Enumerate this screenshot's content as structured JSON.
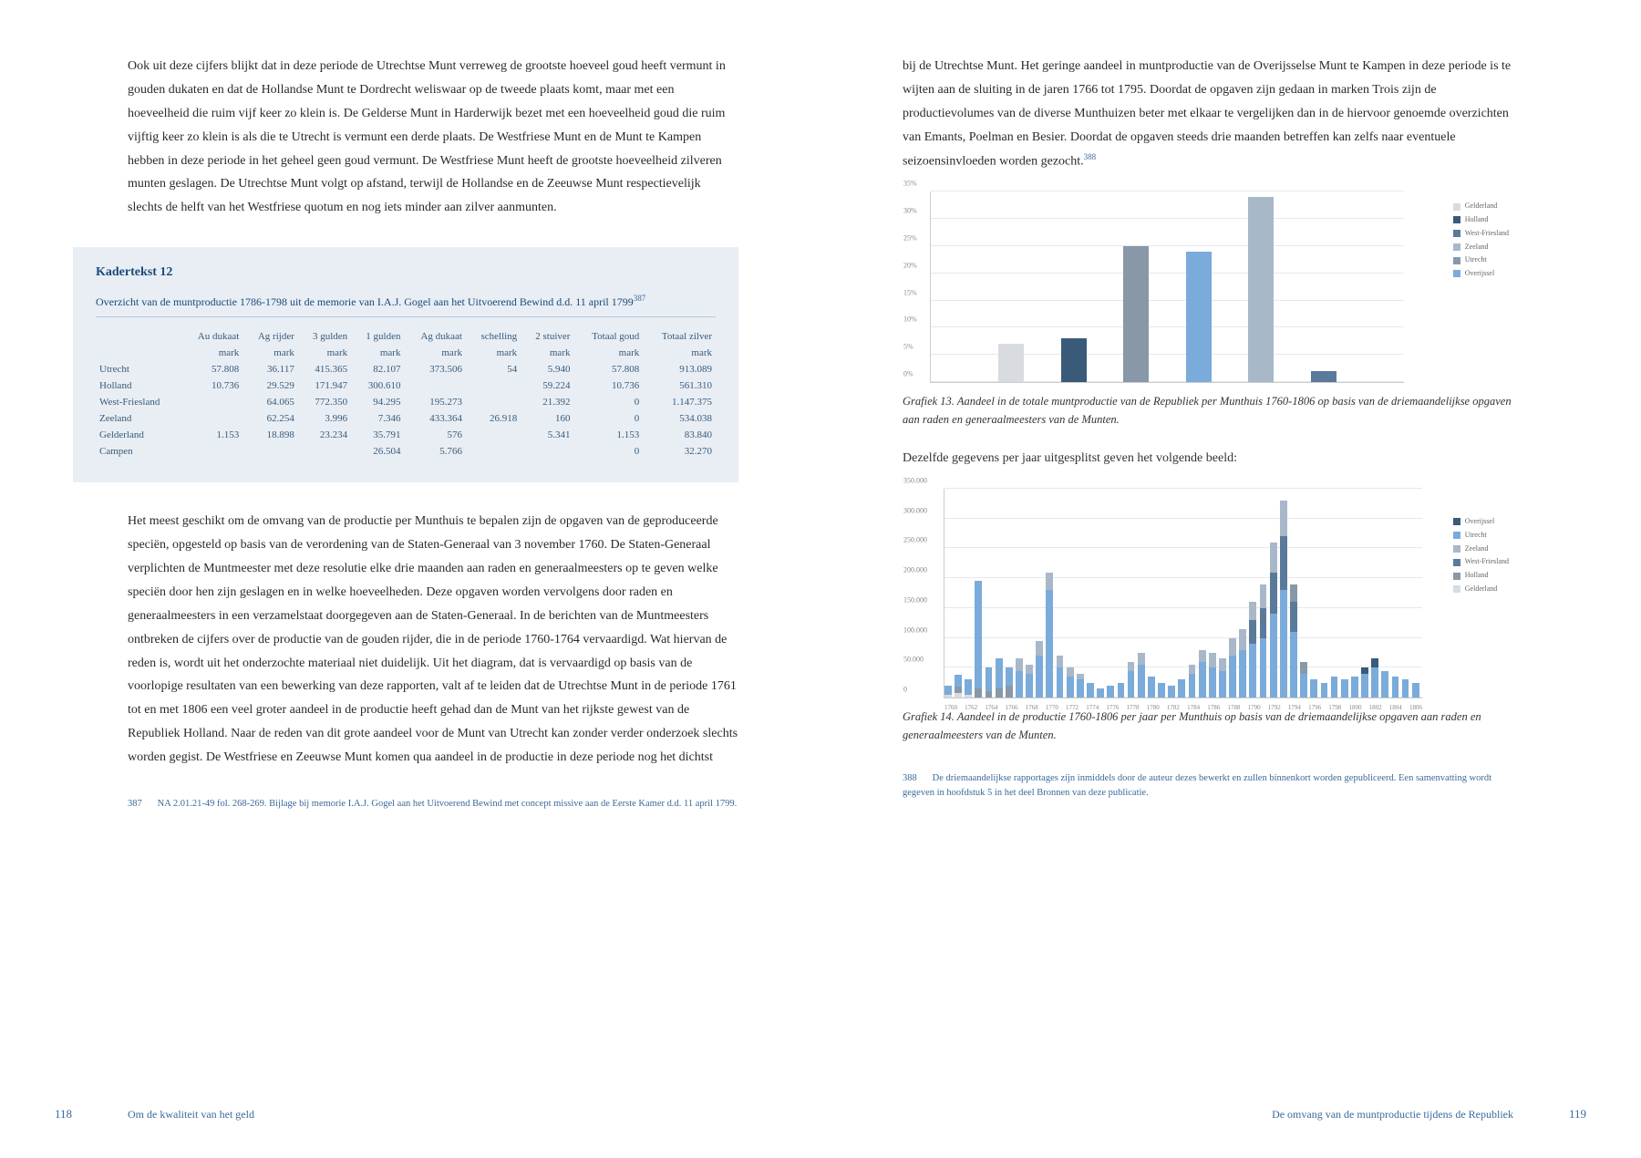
{
  "left": {
    "para1": "Ook uit deze cijfers blijkt dat in deze periode de Utrechtse Munt verreweg de grootste hoeveel goud heeft vermunt in gouden dukaten en dat de Hollandse Munt te Dordrecht weliswaar op de tweede plaats komt, maar met een hoeveelheid die ruim vijf keer zo klein is. De Gelderse Munt in Harderwijk bezet met een hoeveelheid goud die ruim vijftig keer zo klein is als die te Utrecht is vermunt een derde plaats. De Westfriese Munt en de Munt te Kampen hebben in deze periode in het geheel geen goud vermunt. De Westfriese Munt heeft de grootste hoeveelheid zilveren munten geslagen. De Utrechtse Munt volgt op afstand, terwijl de Hollandse en de Zeeuwse Munt respectievelijk slechts de helft van het Westfriese quotum en nog iets minder aan zilver aanmunten.",
    "kader_title": "Kadertekst 12",
    "kader_subtitle": "Overzicht van de muntproductie 1786-1798 uit de memorie van I.A.J. Gogel aan het Uitvoerend Bewind d.d. 11 april 1799",
    "table": {
      "headers_row1": [
        "",
        "Au dukaat",
        "Ag rijder",
        "3 gulden",
        "1 gulden",
        "Ag dukaat",
        "schelling",
        "2 stuiver",
        "Totaal goud",
        "Totaal zilver"
      ],
      "headers_row2": [
        "",
        "mark",
        "mark",
        "mark",
        "mark",
        "mark",
        "mark",
        "mark",
        "mark",
        "mark"
      ],
      "rows": [
        [
          "Utrecht",
          "57.808",
          "36.117",
          "415.365",
          "82.107",
          "373.506",
          "54",
          "5.940",
          "57.808",
          "913.089"
        ],
        [
          "Holland",
          "10.736",
          "29.529",
          "171.947",
          "300.610",
          "",
          "",
          "59.224",
          "10.736",
          "561.310"
        ],
        [
          "West-Friesland",
          "",
          "64.065",
          "772.350",
          "94.295",
          "195.273",
          "",
          "21.392",
          "0",
          "1.147.375"
        ],
        [
          "Zeeland",
          "",
          "62.254",
          "3.996",
          "7.346",
          "433.364",
          "26.918",
          "160",
          "0",
          "534.038"
        ],
        [
          "Gelderland",
          "1.153",
          "18.898",
          "23.234",
          "35.791",
          "576",
          "",
          "5.341",
          "1.153",
          "83.840"
        ],
        [
          "Campen",
          "",
          "",
          "",
          "26.504",
          "5.766",
          "",
          "",
          "0",
          "32.270"
        ]
      ]
    },
    "para2": "Het meest geschikt om de omvang van de productie per Munthuis te bepalen zijn de opgaven van de geproduceerde speciën, opgesteld op basis van de verordening van de Staten-Generaal van 3 november 1760. De Staten-Generaal verplichten de Muntmeester met deze resolutie elke drie maanden aan raden en generaalmeesters op te geven welke speciën door hen zijn geslagen en in welke hoeveelheden. Deze opgaven worden vervolgens door raden en generaalmeesters in een verzamelstaat doorgegeven aan de Staten-Generaal. In de berichten van de Muntmeesters ontbreken de cijfers over de productie van de gouden rijder, die in de periode 1760-1764 vervaardigd. Wat hiervan de reden is, wordt uit het onderzochte materiaal niet duidelijk. Uit het diagram, dat is vervaardigd op basis van de voorlopige resultaten van een bewerking van deze rapporten, valt af te leiden dat de Utrechtse Munt in de periode 1761 tot en met 1806 een veel groter aandeel in de productie heeft gehad dan de Munt van het rijkste gewest van de Republiek Holland. Naar de reden van dit grote aandeel voor de Munt van Utrecht kan zonder verder onderzoek slechts worden gegist. De Westfriese en Zeeuwse Munt komen qua aandeel in de productie in deze periode nog het dichtst",
    "footnote_num": "387",
    "footnote_text": "NA 2.01.21-49 fol. 268-269. Bijlage bij memorie I.A.J. Gogel aan het Uitvoerend Bewind met concept missive aan de Eerste Kamer d.d. 11 april 1799.",
    "page_num": "118",
    "page_footer": "Om de kwaliteit van het geld"
  },
  "right": {
    "para1": "bij de Utrechtse Munt. Het geringe aandeel in muntproductie van de Overijsselse Munt te Kampen in deze periode is te wijten aan de sluiting in de jaren 1766 tot 1795. Doordat de opgaven zijn gedaan in marken Trois zijn de productievolumes van de diverse Munthuizen beter met elkaar te vergelijken dan in de hiervoor genoemde overzichten van Emants, Poelman en Besier. Doordat de opgaven steeds drie maanden betreffen kan zelfs naar eventuele seizoensinvloeden worden gezocht.",
    "chart13": {
      "type": "bar",
      "y_ticks": [
        "0%",
        "5%",
        "10%",
        "15%",
        "20%",
        "25%",
        "30%",
        "35%"
      ],
      "ymax": 35,
      "legend": [
        {
          "label": "Gelderland",
          "color": "#d8dce0"
        },
        {
          "label": "Holland",
          "color": "#3a5a7a"
        },
        {
          "label": "West-Friesland",
          "color": "#5a7a9a"
        },
        {
          "label": "Zeeland",
          "color": "#a8b8c8"
        },
        {
          "label": "Utrecht",
          "color": "#8898a8"
        },
        {
          "label": "Overijssel",
          "color": "#7aabda"
        }
      ],
      "bars": [
        {
          "value": 7,
          "color": "#d8dce0"
        },
        {
          "value": 8,
          "color": "#3a5a7a"
        },
        {
          "value": 25,
          "color": "#8898a8"
        },
        {
          "value": 24,
          "color": "#7aabda"
        },
        {
          "value": 34,
          "color": "#a8b8c8"
        },
        {
          "value": 2,
          "color": "#5a7a9a"
        }
      ]
    },
    "caption13": "Grafiek 13. Aandeel in de totale muntproductie van de Republiek per Munthuis 1760-1806 op basis van de driemaandelijkse opgaven aan raden en generaalmeesters van de Munten.",
    "between_text": "Dezelfde gegevens per jaar uitgesplitst geven het volgende beeld:",
    "chart14": {
      "type": "bar-stacked",
      "y_ticks": [
        "0",
        "50.000",
        "100.000",
        "150.000",
        "200.000",
        "250.000",
        "300.000",
        "350.000"
      ],
      "ymax": 350000,
      "x_labels": [
        "1760",
        "1762",
        "1764",
        "1766",
        "1768",
        "1770",
        "1772",
        "1774",
        "1776",
        "1778",
        "1780",
        "1782",
        "1784",
        "1786",
        "1788",
        "1790",
        "1792",
        "1794",
        "1796",
        "1798",
        "1800",
        "1802",
        "1804",
        "1806"
      ],
      "legend": [
        {
          "label": "Overijssel",
          "color": "#3a5a7a"
        },
        {
          "label": "Utrecht",
          "color": "#7aabda"
        },
        {
          "label": "Zeeland",
          "color": "#a8b8c8"
        },
        {
          "label": "West-Friesland",
          "color": "#5a7a9a"
        },
        {
          "label": "Holland",
          "color": "#8898a8"
        },
        {
          "label": "Gelderland",
          "color": "#d8dce0"
        }
      ],
      "years": [
        {
          "y": 1760,
          "stacks": [
            {
              "c": "#d8dce0",
              "v": 5000
            },
            {
              "c": "#7aabda",
              "v": 15000
            }
          ]
        },
        {
          "y": 1761,
          "stacks": [
            {
              "c": "#d8dce0",
              "v": 8000
            },
            {
              "c": "#8898a8",
              "v": 10000
            },
            {
              "c": "#7aabda",
              "v": 20000
            }
          ]
        },
        {
          "y": 1762,
          "stacks": [
            {
              "c": "#d8dce0",
              "v": 5000
            },
            {
              "c": "#7aabda",
              "v": 25000
            }
          ]
        },
        {
          "y": 1763,
          "stacks": [
            {
              "c": "#8898a8",
              "v": 15000
            },
            {
              "c": "#7aabda",
              "v": 180000
            }
          ]
        },
        {
          "y": 1764,
          "stacks": [
            {
              "c": "#8898a8",
              "v": 10000
            },
            {
              "c": "#7aabda",
              "v": 40000
            }
          ]
        },
        {
          "y": 1765,
          "stacks": [
            {
              "c": "#8898a8",
              "v": 15000
            },
            {
              "c": "#7aabda",
              "v": 50000
            }
          ]
        },
        {
          "y": 1766,
          "stacks": [
            {
              "c": "#8898a8",
              "v": 20000
            },
            {
              "c": "#7aabda",
              "v": 30000
            }
          ]
        },
        {
          "y": 1767,
          "stacks": [
            {
              "c": "#7aabda",
              "v": 45000
            },
            {
              "c": "#a8b8c8",
              "v": 20000
            }
          ]
        },
        {
          "y": 1768,
          "stacks": [
            {
              "c": "#7aabda",
              "v": 40000
            },
            {
              "c": "#a8b8c8",
              "v": 15000
            }
          ]
        },
        {
          "y": 1769,
          "stacks": [
            {
              "c": "#7aabda",
              "v": 70000
            },
            {
              "c": "#a8b8c8",
              "v": 25000
            }
          ]
        },
        {
          "y": 1770,
          "stacks": [
            {
              "c": "#7aabda",
              "v": 180000
            },
            {
              "c": "#a8b8c8",
              "v": 30000
            }
          ]
        },
        {
          "y": 1771,
          "stacks": [
            {
              "c": "#7aabda",
              "v": 50000
            },
            {
              "c": "#a8b8c8",
              "v": 20000
            }
          ]
        },
        {
          "y": 1772,
          "stacks": [
            {
              "c": "#7aabda",
              "v": 35000
            },
            {
              "c": "#a8b8c8",
              "v": 15000
            }
          ]
        },
        {
          "y": 1773,
          "stacks": [
            {
              "c": "#7aabda",
              "v": 30000
            },
            {
              "c": "#a8b8c8",
              "v": 10000
            }
          ]
        },
        {
          "y": 1774,
          "stacks": [
            {
              "c": "#7aabda",
              "v": 25000
            }
          ]
        },
        {
          "y": 1775,
          "stacks": [
            {
              "c": "#7aabda",
              "v": 15000
            }
          ]
        },
        {
          "y": 1776,
          "stacks": [
            {
              "c": "#7aabda",
              "v": 20000
            }
          ]
        },
        {
          "y": 1777,
          "stacks": [
            {
              "c": "#7aabda",
              "v": 25000
            }
          ]
        },
        {
          "y": 1778,
          "stacks": [
            {
              "c": "#7aabda",
              "v": 45000
            },
            {
              "c": "#a8b8c8",
              "v": 15000
            }
          ]
        },
        {
          "y": 1779,
          "stacks": [
            {
              "c": "#7aabda",
              "v": 55000
            },
            {
              "c": "#a8b8c8",
              "v": 20000
            }
          ]
        },
        {
          "y": 1780,
          "stacks": [
            {
              "c": "#7aabda",
              "v": 35000
            }
          ]
        },
        {
          "y": 1781,
          "stacks": [
            {
              "c": "#7aabda",
              "v": 25000
            }
          ]
        },
        {
          "y": 1782,
          "stacks": [
            {
              "c": "#7aabda",
              "v": 20000
            }
          ]
        },
        {
          "y": 1783,
          "stacks": [
            {
              "c": "#7aabda",
              "v": 30000
            }
          ]
        },
        {
          "y": 1784,
          "stacks": [
            {
              "c": "#7aabda",
              "v": 40000
            },
            {
              "c": "#a8b8c8",
              "v": 15000
            }
          ]
        },
        {
          "y": 1785,
          "stacks": [
            {
              "c": "#7aabda",
              "v": 60000
            },
            {
              "c": "#a8b8c8",
              "v": 20000
            }
          ]
        },
        {
          "y": 1786,
          "stacks": [
            {
              "c": "#7aabda",
              "v": 50000
            },
            {
              "c": "#a8b8c8",
              "v": 25000
            }
          ]
        },
        {
          "y": 1787,
          "stacks": [
            {
              "c": "#7aabda",
              "v": 45000
            },
            {
              "c": "#a8b8c8",
              "v": 20000
            }
          ]
        },
        {
          "y": 1788,
          "stacks": [
            {
              "c": "#7aabda",
              "v": 70000
            },
            {
              "c": "#a8b8c8",
              "v": 30000
            }
          ]
        },
        {
          "y": 1789,
          "stacks": [
            {
              "c": "#7aabda",
              "v": 80000
            },
            {
              "c": "#a8b8c8",
              "v": 35000
            }
          ]
        },
        {
          "y": 1790,
          "stacks": [
            {
              "c": "#7aabda",
              "v": 90000
            },
            {
              "c": "#5a7a9a",
              "v": 40000
            },
            {
              "c": "#a8b8c8",
              "v": 30000
            }
          ]
        },
        {
          "y": 1791,
          "stacks": [
            {
              "c": "#7aabda",
              "v": 100000
            },
            {
              "c": "#5a7a9a",
              "v": 50000
            },
            {
              "c": "#a8b8c8",
              "v": 40000
            }
          ]
        },
        {
          "y": 1792,
          "stacks": [
            {
              "c": "#7aabda",
              "v": 140000
            },
            {
              "c": "#5a7a9a",
              "v": 70000
            },
            {
              "c": "#a8b8c8",
              "v": 50000
            }
          ]
        },
        {
          "y": 1793,
          "stacks": [
            {
              "c": "#7aabda",
              "v": 180000
            },
            {
              "c": "#5a7a9a",
              "v": 90000
            },
            {
              "c": "#a8b8c8",
              "v": 60000
            }
          ]
        },
        {
          "y": 1794,
          "stacks": [
            {
              "c": "#7aabda",
              "v": 110000
            },
            {
              "c": "#5a7a9a",
              "v": 50000
            },
            {
              "c": "#8898a8",
              "v": 30000
            }
          ]
        },
        {
          "y": 1795,
          "stacks": [
            {
              "c": "#7aabda",
              "v": 40000
            },
            {
              "c": "#8898a8",
              "v": 20000
            }
          ]
        },
        {
          "y": 1796,
          "stacks": [
            {
              "c": "#7aabda",
              "v": 30000
            }
          ]
        },
        {
          "y": 1797,
          "stacks": [
            {
              "c": "#7aabda",
              "v": 25000
            }
          ]
        },
        {
          "y": 1798,
          "stacks": [
            {
              "c": "#7aabda",
              "v": 35000
            }
          ]
        },
        {
          "y": 1799,
          "stacks": [
            {
              "c": "#7aabda",
              "v": 30000
            }
          ]
        },
        {
          "y": 1800,
          "stacks": [
            {
              "c": "#7aabda",
              "v": 35000
            }
          ]
        },
        {
          "y": 1801,
          "stacks": [
            {
              "c": "#7aabda",
              "v": 40000
            },
            {
              "c": "#3a5a7a",
              "v": 10000
            }
          ]
        },
        {
          "y": 1802,
          "stacks": [
            {
              "c": "#7aabda",
              "v": 50000
            },
            {
              "c": "#3a5a7a",
              "v": 15000
            }
          ]
        },
        {
          "y": 1803,
          "stacks": [
            {
              "c": "#7aabda",
              "v": 45000
            }
          ]
        },
        {
          "y": 1804,
          "stacks": [
            {
              "c": "#7aabda",
              "v": 35000
            }
          ]
        },
        {
          "y": 1805,
          "stacks": [
            {
              "c": "#7aabda",
              "v": 30000
            }
          ]
        },
        {
          "y": 1806,
          "stacks": [
            {
              "c": "#7aabda",
              "v": 25000
            }
          ]
        }
      ]
    },
    "caption14": "Grafiek 14. Aandeel in de productie 1760-1806 per jaar per Munthuis op basis van de driemaandelijkse opgaven aan raden en generaalmeesters van de Munten.",
    "footnote_num": "388",
    "footnote_text": "De driemaandelijkse rapportages zijn inmiddels door de auteur dezes bewerkt en zullen binnenkort worden gepubliceerd. Een samenvatting wordt gegeven in hoofdstuk 5 in het deel Bronnen van deze publicatie.",
    "page_num": "119",
    "page_footer": "De omvang van de muntproductie tijdens de Republiek"
  }
}
